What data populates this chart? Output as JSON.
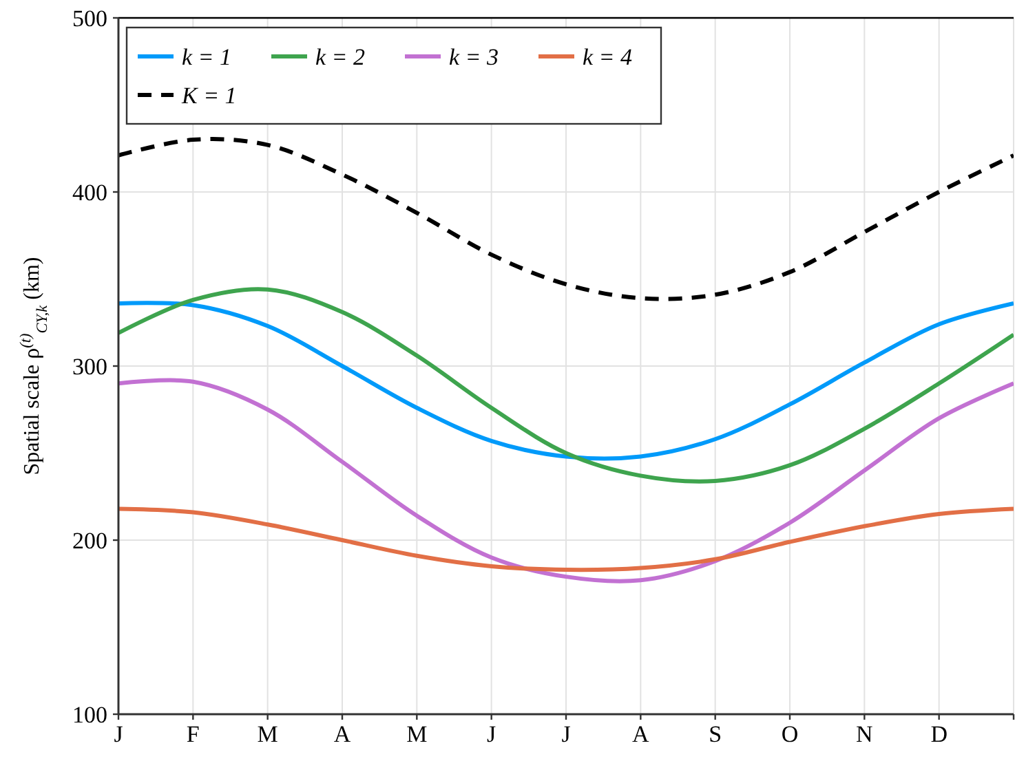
{
  "chart_data": {
    "type": "line",
    "ylabel": "Spatial scale ρ$^{(t)}$$_{CY,k}$ (km)",
    "categories": [
      "J",
      "F",
      "M",
      "A",
      "M",
      "J",
      "J",
      "A",
      "S",
      "O",
      "N",
      "D",
      null
    ],
    "series": [
      {
        "name": "k = 1",
        "color": "#009afa",
        "values": [
          336,
          335,
          323,
          300,
          276,
          257,
          248,
          248,
          258,
          278,
          302,
          324,
          336
        ]
      },
      {
        "name": "k = 2",
        "color": "#3ea44e",
        "values": [
          319,
          338,
          344,
          331,
          306,
          276,
          250,
          237,
          234,
          243,
          264,
          290,
          318
        ]
      },
      {
        "name": "k = 3",
        "color": "#c271d2",
        "values": [
          290,
          291,
          275,
          245,
          214,
          190,
          179,
          177,
          188,
          210,
          240,
          270,
          290
        ]
      },
      {
        "name": "k = 4",
        "color": "#e26f46",
        "values": [
          218,
          216,
          209,
          200,
          191,
          185,
          183,
          184,
          189,
          199,
          208,
          215,
          218
        ]
      },
      {
        "name": "K = 1",
        "color": "#000000",
        "line_style": "dashed",
        "values": [
          421,
          430,
          427,
          410,
          388,
          364,
          347,
          339,
          341,
          354,
          377,
          400,
          421
        ]
      }
    ],
    "ylim": [
      100,
      500
    ],
    "yticks": [
      100,
      200,
      300,
      400,
      500
    ],
    "grid": true,
    "legend": "top left"
  }
}
